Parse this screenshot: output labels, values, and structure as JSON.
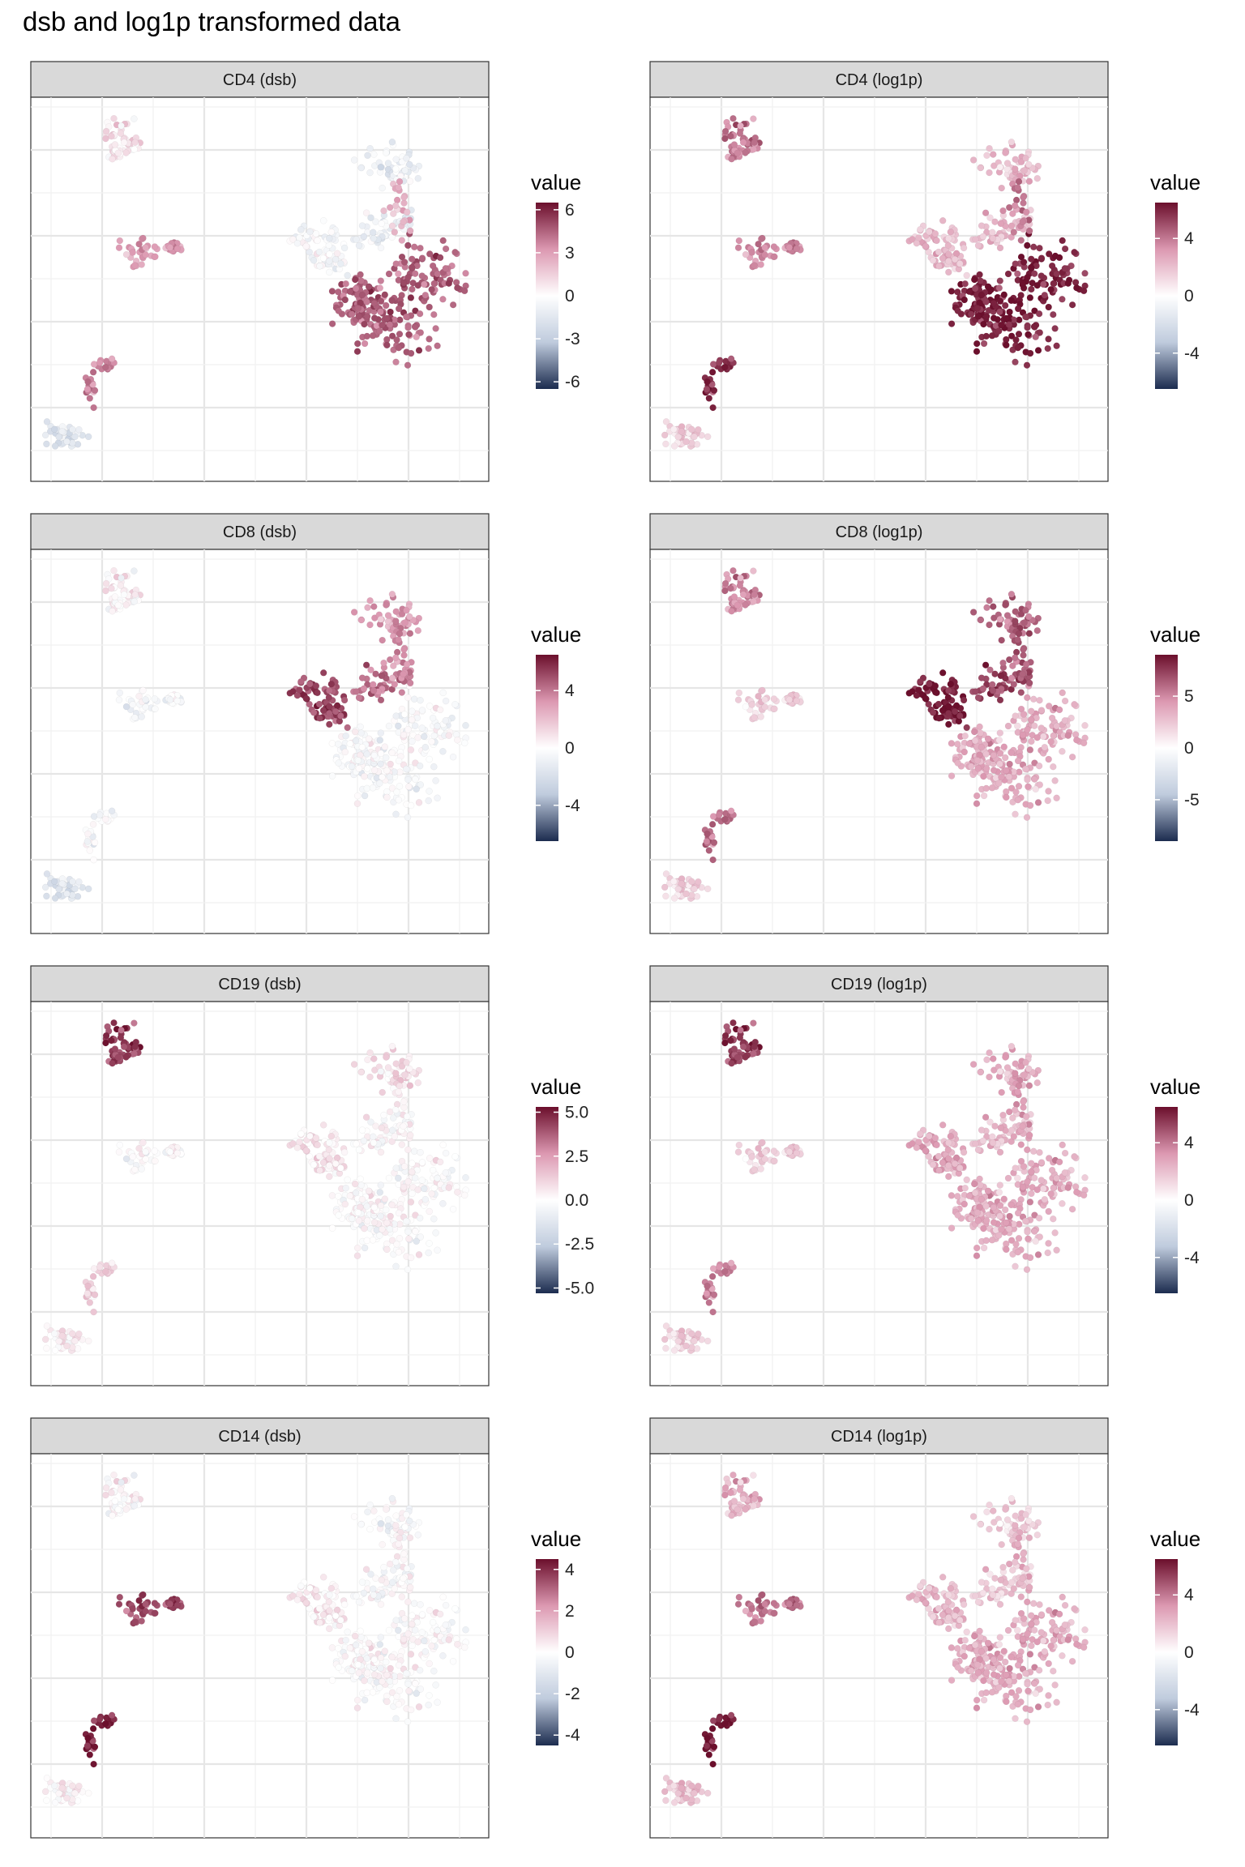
{
  "figure": {
    "title": "dsb and log1p transformed data"
  },
  "palette": {
    "low": "#1c2c4f",
    "mid_low": "#bfcbdd",
    "mid": "#ffffff",
    "mid_high": "#dc98b1",
    "high": "#6b0f2c"
  },
  "chart_data": [
    {
      "type": "scatter",
      "panel": "CD4 (dsb)",
      "marker": "CD4",
      "transform": "dsb",
      "legend_title": "value",
      "legend_ticks": [
        "6",
        "3",
        "0",
        "-3",
        "-6"
      ],
      "legend_range": [
        -6.5,
        6.5
      ],
      "clusters": {
        "top_left": 1.0,
        "mid_left": 3.0,
        "low_left": 3.5,
        "bottom_left": -1.5,
        "top_right": -1.0,
        "right_left_lobe": -0.5,
        "right_bottom": 4.5,
        "right_upper_strip": -1.0,
        "right_scatter": 2.5
      }
    },
    {
      "type": "scatter",
      "panel": "CD4 (log1p)",
      "marker": "CD4",
      "transform": "log1p",
      "legend_title": "value",
      "legend_ticks": [
        "4",
        "0",
        "-4"
      ],
      "legend_range": [
        -6.5,
        6.5
      ],
      "clusters": {
        "top_left": 4.0,
        "mid_left": 3.5,
        "low_left": 5.5,
        "bottom_left": 1.5,
        "top_right": 2.0,
        "right_left_lobe": 2.0,
        "right_bottom": 6.0,
        "right_upper_strip": 2.0,
        "right_scatter": 4.0
      }
    },
    {
      "type": "scatter",
      "panel": "CD8 (dsb)",
      "marker": "CD8",
      "transform": "dsb",
      "legend_title": "value",
      "legend_ticks": [
        "4",
        "0",
        "-4"
      ],
      "legend_range": [
        -6.5,
        6.5
      ],
      "clusters": {
        "top_left": 0.5,
        "mid_left": -0.5,
        "low_left": -0.5,
        "bottom_left": -1.5,
        "top_right": 3.0,
        "right_left_lobe": 5.0,
        "right_bottom": -0.3,
        "right_upper_strip": 4.0,
        "right_scatter": 3.5
      }
    },
    {
      "type": "scatter",
      "panel": "CD8 (log1p)",
      "marker": "CD8",
      "transform": "log1p",
      "legend_title": "value",
      "legend_ticks": [
        "5",
        "0",
        "-5"
      ],
      "legend_range": [
        -9,
        9
      ],
      "clusters": {
        "top_left": 5.0,
        "mid_left": 2.0,
        "low_left": 5.5,
        "bottom_left": 2.0,
        "top_right": 6.0,
        "right_left_lobe": 8.5,
        "right_bottom": 3.5,
        "right_upper_strip": 7.0,
        "right_scatter": 6.5
      }
    },
    {
      "type": "scatter",
      "panel": "CD19 (dsb)",
      "marker": "CD19",
      "transform": "dsb",
      "legend_title": "value",
      "legend_ticks": [
        "5.0",
        "2.5",
        "0.0",
        "-2.5",
        "-5.0"
      ],
      "legend_range": [
        -5.3,
        5.3
      ],
      "clusters": {
        "top_left": 4.5,
        "mid_left": 0.0,
        "low_left": 1.0,
        "bottom_left": 0.5,
        "top_right": 0.8,
        "right_left_lobe": 0.5,
        "right_bottom": 0.0,
        "right_upper_strip": 0.0,
        "right_scatter": 0.3
      }
    },
    {
      "type": "scatter",
      "panel": "CD19 (log1p)",
      "marker": "CD19",
      "transform": "log1p",
      "legend_title": "value",
      "legend_ticks": [
        "4",
        "0",
        "-4"
      ],
      "legend_range": [
        -6.5,
        6.5
      ],
      "clusters": {
        "top_left": 5.5,
        "mid_left": 1.5,
        "low_left": 3.5,
        "bottom_left": 1.5,
        "top_right": 2.5,
        "right_left_lobe": 2.5,
        "right_bottom": 2.5,
        "right_upper_strip": 2.0,
        "right_scatter": 3.0
      }
    },
    {
      "type": "scatter",
      "panel": "CD14 (dsb)",
      "marker": "CD14",
      "transform": "dsb",
      "legend_title": "value",
      "legend_ticks": [
        "4",
        "2",
        "0",
        "-2",
        "-4"
      ],
      "legend_range": [
        -4.5,
        4.5
      ],
      "clusters": {
        "top_left": 0.2,
        "mid_left": 3.5,
        "low_left": 4.0,
        "bottom_left": 0.3,
        "top_right": -0.2,
        "right_left_lobe": 0.3,
        "right_bottom": 0.0,
        "right_upper_strip": -0.2,
        "right_scatter": 0.2
      }
    },
    {
      "type": "scatter",
      "panel": "CD14 (log1p)",
      "marker": "CD14",
      "transform": "log1p",
      "legend_title": "value",
      "legend_ticks": [
        "4",
        "0",
        "-4"
      ],
      "legend_range": [
        -6.5,
        6.5
      ],
      "clusters": {
        "top_left": 2.5,
        "mid_left": 4.0,
        "low_left": 6.0,
        "bottom_left": 2.0,
        "top_right": 1.5,
        "right_left_lobe": 2.0,
        "right_bottom": 2.5,
        "right_upper_strip": 1.5,
        "right_scatter": 2.5
      }
    }
  ]
}
